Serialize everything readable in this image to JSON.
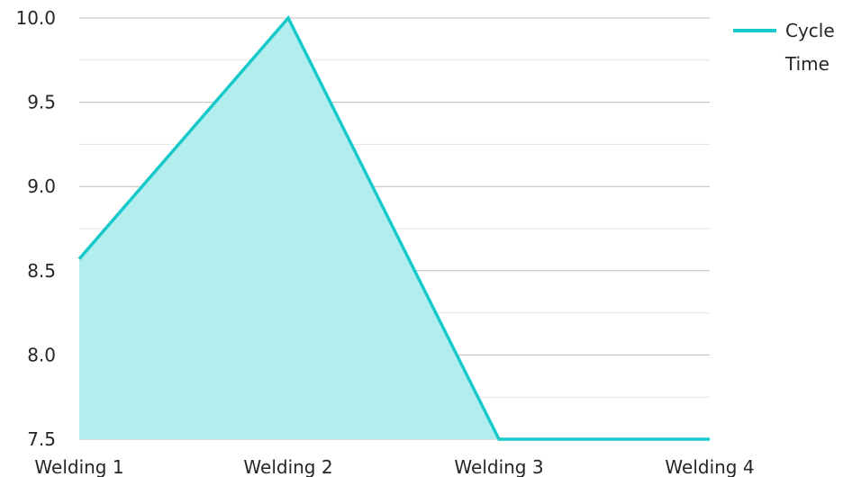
{
  "chart_data": {
    "type": "area",
    "categories": [
      "Welding 1",
      "Welding 2",
      "Welding 3",
      "Welding 4"
    ],
    "series": [
      {
        "name": "Cycle Time",
        "values": [
          8.57,
          10.0,
          7.5,
          7.5
        ]
      }
    ],
    "ylim": [
      7.5,
      10.0
    ],
    "yticks": [
      "7.5",
      "8.0",
      "8.5",
      "9.0",
      "9.5",
      "10.0"
    ],
    "ytick_values": [
      7.5,
      8.0,
      8.5,
      9.0,
      9.5,
      10.0
    ],
    "minor_grid_values": [
      7.75,
      8.25,
      8.75,
      9.25,
      9.75
    ],
    "grid": true,
    "legend_position": "top-right",
    "legend_lines": [
      "Cycle",
      "Time"
    ],
    "colors": {
      "line": "#17c9c9",
      "fill": "#b2eeee",
      "grid_major": "#bdbdbd",
      "grid_minor": "#e6e6e6"
    }
  }
}
